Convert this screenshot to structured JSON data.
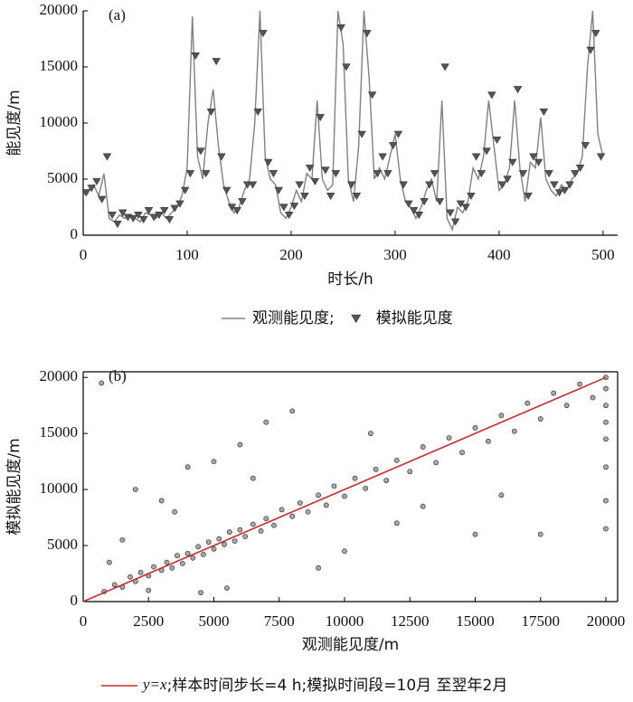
{
  "chart_data": [
    {
      "type": "line",
      "panel_label": "(a)",
      "x_label": "时长/h",
      "y_label": "能见度/m",
      "xlim": [
        0,
        514
      ],
      "ylim": [
        0,
        20000
      ],
      "xticks": [
        0,
        100,
        200,
        300,
        400,
        500
      ],
      "yticks": [
        0,
        5000,
        10000,
        15000,
        20000
      ],
      "frame": false,
      "legend": "bottom",
      "series": [
        {
          "name": "观测能见度;",
          "color": "#808080",
          "marker": "none",
          "x": [
            0,
            5,
            10,
            15,
            20,
            25,
            30,
            35,
            40,
            45,
            50,
            55,
            60,
            65,
            70,
            75,
            80,
            85,
            90,
            95,
            100,
            105,
            110,
            115,
            120,
            125,
            130,
            135,
            140,
            145,
            150,
            155,
            160,
            165,
            170,
            175,
            180,
            185,
            190,
            195,
            200,
            205,
            210,
            215,
            220,
            225,
            230,
            235,
            240,
            245,
            250,
            255,
            260,
            265,
            270,
            275,
            280,
            285,
            290,
            295,
            300,
            305,
            310,
            315,
            320,
            325,
            330,
            335,
            340,
            345,
            350,
            355,
            360,
            365,
            370,
            375,
            380,
            385,
            390,
            395,
            400,
            405,
            410,
            415,
            420,
            425,
            430,
            435,
            440,
            445,
            450,
            455,
            460,
            465,
            470,
            475,
            480,
            485,
            490,
            495,
            500
          ],
          "values": [
            3500,
            4000,
            4500,
            3500,
            5500,
            1500,
            1200,
            1800,
            1500,
            1800,
            1500,
            1200,
            2000,
            1800,
            1500,
            2000,
            1500,
            2000,
            2500,
            3500,
            6000,
            19500,
            7000,
            5000,
            10000,
            13000,
            8000,
            4500,
            3000,
            2000,
            2500,
            4000,
            5000,
            10000,
            20000,
            7000,
            5000,
            4500,
            2000,
            1500,
            2500,
            4000,
            3000,
            5500,
            5000,
            12000,
            5000,
            4000,
            4500,
            20000,
            17000,
            5000,
            3000,
            8000,
            20000,
            14000,
            5000,
            6000,
            5000,
            7000,
            9000,
            5000,
            3000,
            2500,
            1500,
            2500,
            4000,
            5000,
            3000,
            12000,
            1500,
            500,
            2500,
            2000,
            3000,
            6000,
            5000,
            7000,
            12000,
            8000,
            4000,
            4500,
            6000,
            12000,
            6000,
            3000,
            6500,
            6000,
            10500,
            5000,
            4000,
            3500,
            4500,
            4000,
            5000,
            5500,
            7000,
            15000,
            20000,
            9000,
            7000
          ]
        },
        {
          "name": "模拟能见度",
          "color": "#555555",
          "marker": "triangle",
          "x": [
            3,
            8,
            13,
            18,
            23,
            28,
            33,
            38,
            43,
            48,
            53,
            58,
            63,
            68,
            73,
            78,
            83,
            88,
            93,
            98,
            103,
            108,
            113,
            118,
            123,
            128,
            133,
            138,
            143,
            148,
            153,
            158,
            163,
            168,
            173,
            178,
            183,
            188,
            193,
            198,
            203,
            208,
            213,
            218,
            223,
            228,
            233,
            238,
            243,
            248,
            253,
            258,
            263,
            268,
            273,
            278,
            283,
            288,
            293,
            298,
            303,
            308,
            313,
            318,
            323,
            328,
            333,
            338,
            343,
            348,
            353,
            358,
            363,
            368,
            373,
            378,
            383,
            388,
            393,
            398,
            403,
            408,
            413,
            418,
            423,
            428,
            433,
            438,
            443,
            448,
            453,
            458,
            463,
            468,
            473,
            478,
            483,
            488,
            493,
            498
          ],
          "values": [
            3800,
            4200,
            4800,
            3200,
            7000,
            1800,
            1000,
            2000,
            1600,
            1500,
            1800,
            1400,
            2200,
            1600,
            1800,
            2200,
            1400,
            2400,
            2800,
            4000,
            5500,
            16000,
            7500,
            5500,
            11000,
            15500,
            7000,
            4000,
            2500,
            2200,
            3000,
            4500,
            4500,
            11000,
            18000,
            6500,
            5500,
            4000,
            2500,
            1800,
            2600,
            4500,
            3500,
            6000,
            4800,
            10500,
            5800,
            3500,
            5500,
            18500,
            15000,
            4500,
            3500,
            9000,
            18000,
            12500,
            5500,
            7000,
            5500,
            8000,
            9000,
            4500,
            2800,
            2200,
            1800,
            3000,
            4500,
            5500,
            3000,
            15000,
            2000,
            1200,
            2800,
            2500,
            3500,
            7000,
            5500,
            7500,
            12500,
            8500,
            4500,
            5000,
            6500,
            13000,
            5500,
            3500,
            7000,
            6500,
            11000,
            5500,
            4500,
            3800,
            4000,
            4500,
            5500,
            6000,
            8000,
            16500,
            18000,
            7000
          ]
        }
      ]
    },
    {
      "type": "scatter",
      "panel_label": "(b)",
      "x_label": "观测能见度/m",
      "y_label": "模拟能见度/m",
      "xlim": [
        0,
        20450
      ],
      "ylim": [
        0,
        20500
      ],
      "xticks": [
        0,
        2500,
        5000,
        7500,
        10000,
        12500,
        15000,
        17500,
        20000
      ],
      "yticks": [
        0,
        5000,
        10000,
        15000,
        20000
      ],
      "frame": true,
      "color": "#6e6e6e",
      "x": [
        800,
        1200,
        1500,
        1800,
        2000,
        2200,
        2500,
        2700,
        3000,
        3200,
        3400,
        3600,
        3800,
        4000,
        4200,
        4400,
        4600,
        4800,
        5000,
        5200,
        5400,
        5600,
        5800,
        6000,
        6200,
        6500,
        6800,
        7000,
        7300,
        7600,
        8000,
        8300,
        8600,
        9000,
        9300,
        9600,
        10000,
        10400,
        10800,
        11200,
        11600,
        12000,
        12500,
        13000,
        13500,
        14000,
        14500,
        15000,
        15500,
        16000,
        16500,
        17000,
        17500,
        18000,
        18500,
        19000,
        19500,
        700,
        1500,
        2000,
        3000,
        4000,
        5000,
        6000,
        7000,
        8000,
        10000,
        12000,
        15000,
        2500,
        3500,
        4500,
        5500,
        6500,
        1000,
        9000,
        11000,
        13000,
        16000,
        17500,
        20000,
        20000,
        20000,
        20000,
        20000,
        20000,
        20000,
        20000
      ],
      "values": [
        900,
        1500,
        1300,
        2200,
        1800,
        2600,
        2300,
        3100,
        2800,
        3500,
        3000,
        4100,
        3400,
        4300,
        3900,
        4900,
        4200,
        5300,
        4700,
        5600,
        5100,
        6200,
        5400,
        6400,
        5800,
        6900,
        6300,
        7400,
        6800,
        8200,
        7600,
        8800,
        8000,
        9500,
        8600,
        10300,
        9400,
        11000,
        10100,
        11800,
        10800,
        12600,
        11600,
        13800,
        12400,
        14600,
        13300,
        15500,
        14300,
        16600,
        15200,
        17700,
        16300,
        18600,
        17500,
        19400,
        18200,
        19500,
        5500,
        10000,
        9000,
        12000,
        12500,
        14000,
        16000,
        17000,
        4500,
        7000,
        6000,
        1000,
        8000,
        800,
        1200,
        11000,
        3500,
        3000,
        15000,
        8500,
        9500,
        6000,
        20000,
        19000,
        17500,
        16000,
        14500,
        12000,
        9000,
        6500
      ],
      "reference_line": {
        "x": [
          0,
          20000
        ],
        "values": [
          0,
          20000
        ],
        "color": "#d62728",
        "label_italic": "y=x",
        "label": ";样本时间步长=4 h;模拟时间段=10月 至翌年2月"
      }
    }
  ]
}
